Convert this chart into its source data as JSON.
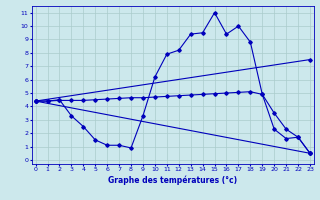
{
  "xlabel": "Graphe des températures (°c)",
  "bg_color": "#cce8ec",
  "grid_color": "#aacccc",
  "line_color": "#0000bb",
  "x_ticks": [
    0,
    1,
    2,
    3,
    4,
    5,
    6,
    7,
    8,
    9,
    10,
    11,
    12,
    13,
    14,
    15,
    16,
    17,
    18,
    19,
    20,
    21,
    22,
    23
  ],
  "y_ticks": [
    0,
    1,
    2,
    3,
    4,
    5,
    6,
    7,
    8,
    9,
    10,
    11
  ],
  "xlim": [
    -0.3,
    23.3
  ],
  "ylim": [
    -0.3,
    11.5
  ],
  "series": {
    "max_temp": {
      "x": [
        0,
        1,
        2,
        3,
        4,
        5,
        6,
        7,
        8,
        9,
        10,
        11,
        12,
        13,
        14,
        15,
        16,
        17,
        18,
        19,
        20,
        21,
        22,
        23
      ],
      "y": [
        4.4,
        4.4,
        4.5,
        3.3,
        2.5,
        1.5,
        1.1,
        1.1,
        0.9,
        3.3,
        6.2,
        7.9,
        8.2,
        9.4,
        9.5,
        11.0,
        9.4,
        10.0,
        8.8,
        4.9,
        2.3,
        1.6,
        1.7,
        0.5
      ]
    },
    "linear_high": {
      "x": [
        0,
        23
      ],
      "y": [
        4.4,
        7.5
      ]
    },
    "flat_mid": {
      "x": [
        0,
        1,
        2,
        3,
        4,
        5,
        6,
        7,
        8,
        9,
        10,
        11,
        12,
        13,
        14,
        15,
        16,
        17,
        18,
        19,
        20,
        21,
        22,
        23
      ],
      "y": [
        4.4,
        4.4,
        4.45,
        4.45,
        4.45,
        4.5,
        4.55,
        4.6,
        4.65,
        4.65,
        4.7,
        4.75,
        4.8,
        4.85,
        4.9,
        4.95,
        5.0,
        5.05,
        5.1,
        4.9,
        3.5,
        2.3,
        1.7,
        0.5
      ]
    },
    "linear_low": {
      "x": [
        0,
        23
      ],
      "y": [
        4.4,
        0.5
      ]
    }
  }
}
